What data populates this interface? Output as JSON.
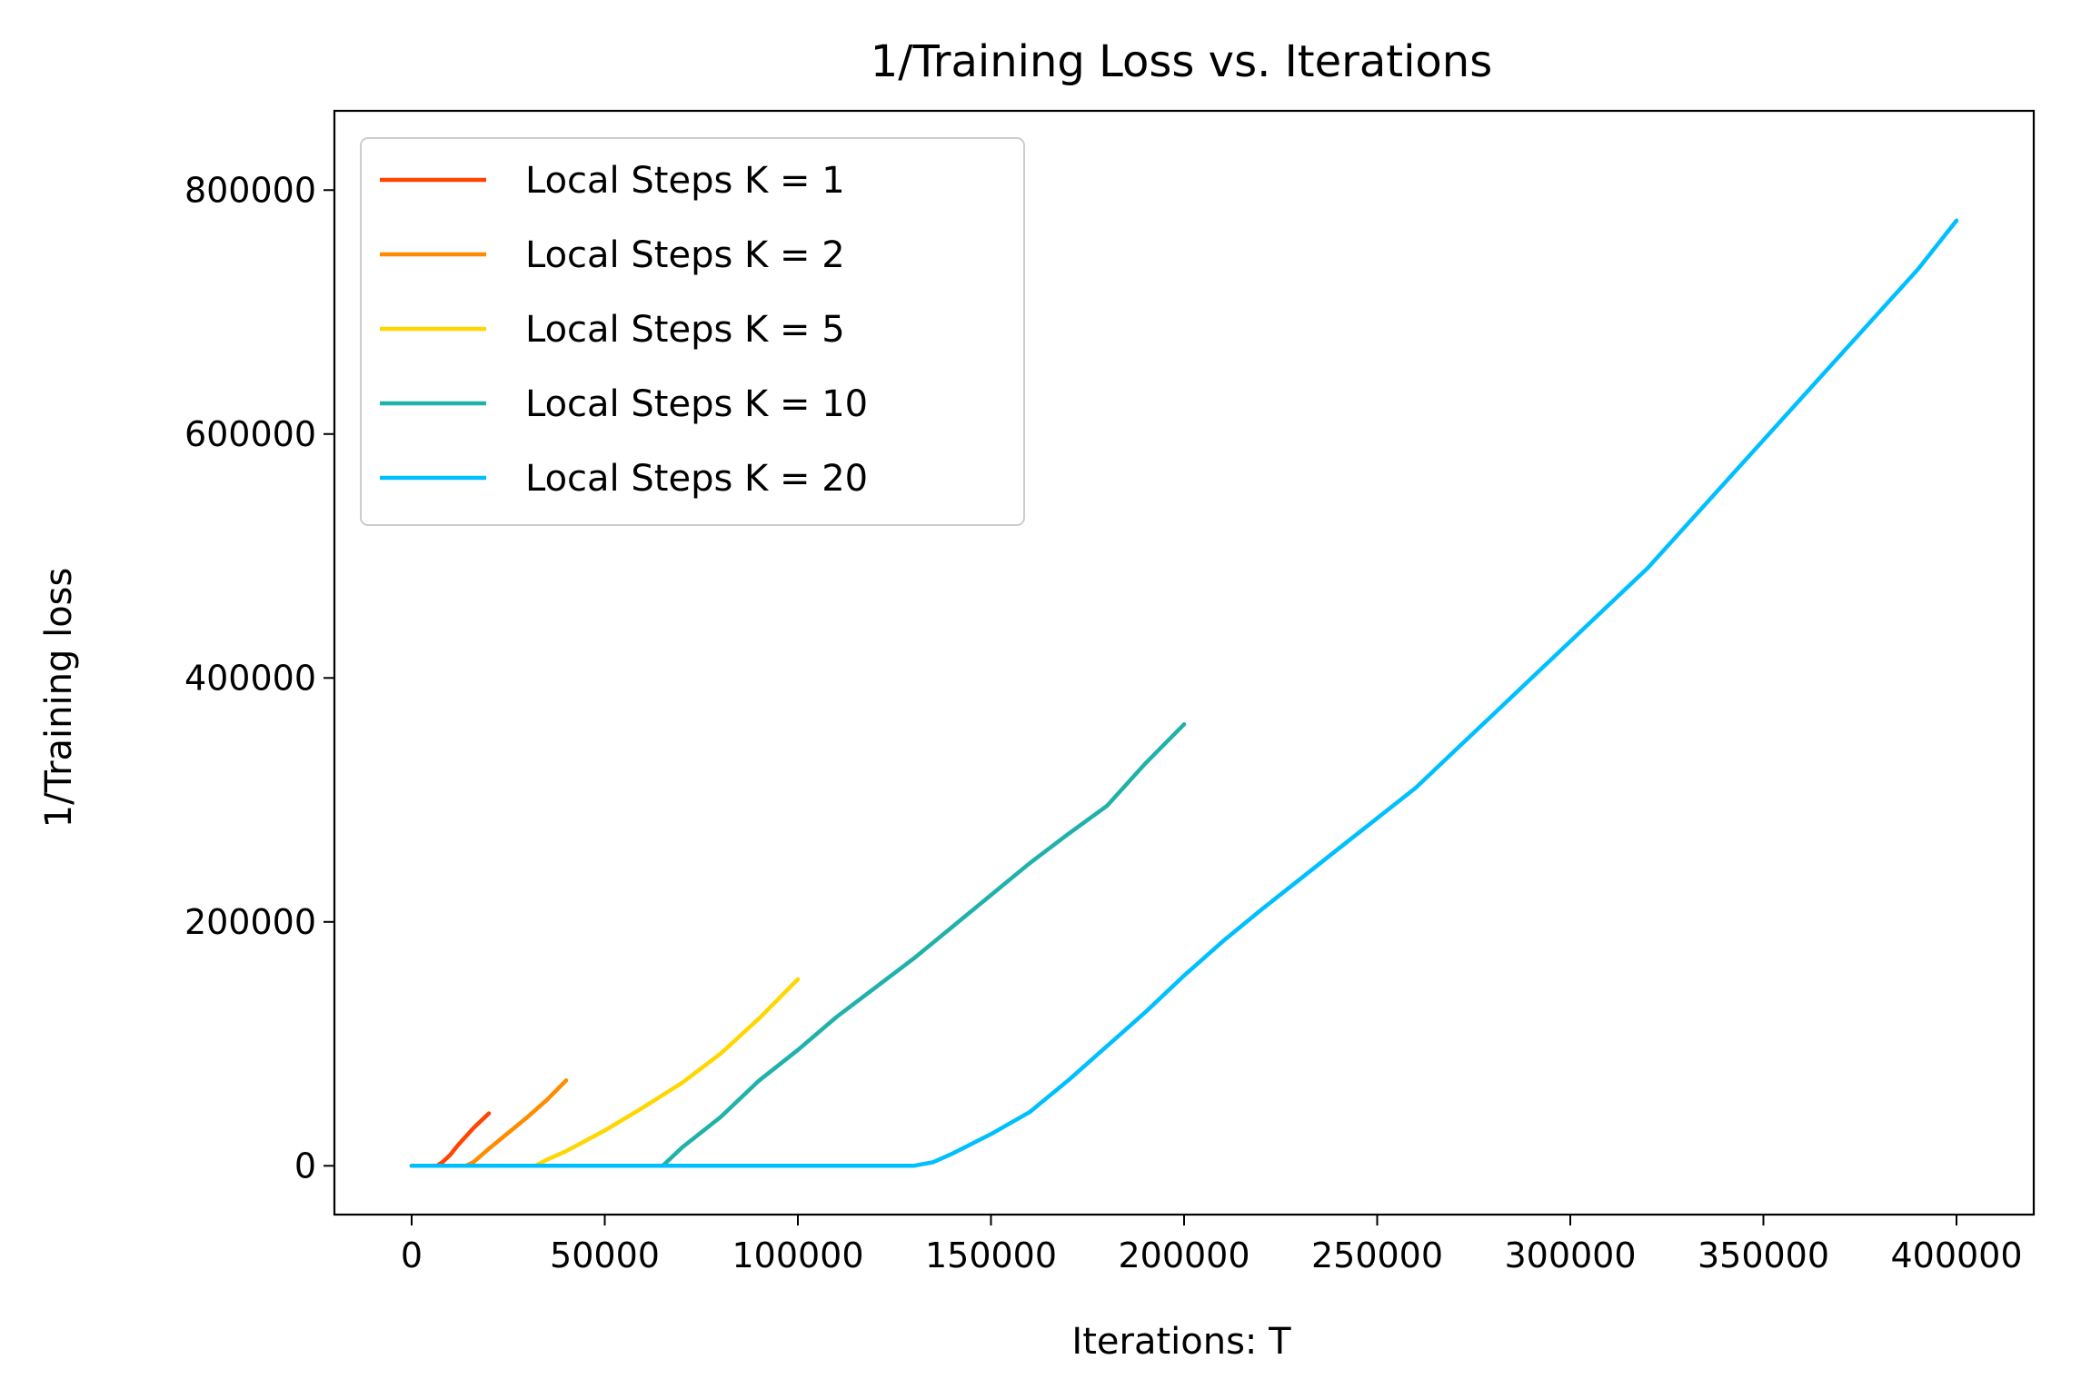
{
  "chart_data": {
    "type": "line",
    "title": "1/Training Loss vs. Iterations",
    "xlabel": "Iterations: T",
    "ylabel": "1/Training loss",
    "xlim": [
      -20000,
      420000
    ],
    "ylim": [
      -40000,
      865000
    ],
    "x_ticks": [
      0,
      50000,
      100000,
      150000,
      200000,
      250000,
      300000,
      350000,
      400000
    ],
    "x_tick_labels": [
      "0",
      "50000",
      "100000",
      "150000",
      "200000",
      "250000",
      "300000",
      "350000",
      "400000"
    ],
    "y_ticks": [
      0,
      200000,
      400000,
      600000,
      800000
    ],
    "y_tick_labels": [
      "0",
      "200000",
      "400000",
      "600000",
      "800000"
    ],
    "grid": false,
    "legend_position": "top-left",
    "series": [
      {
        "name": "Local Steps K = 1",
        "color": "#ff4500",
        "x": [
          0,
          6500,
          8000,
          10000,
          12000,
          14000,
          16000,
          18000,
          20000
        ],
        "y": [
          0,
          0,
          3000,
          9000,
          17000,
          24000,
          31000,
          37000,
          43000
        ]
      },
      {
        "name": "Local Steps K = 2",
        "color": "#ff8c00",
        "x": [
          0,
          14000,
          16000,
          20000,
          25000,
          30000,
          35000,
          40000
        ],
        "y": [
          0,
          0,
          3000,
          14000,
          27000,
          40000,
          54000,
          70000
        ]
      },
      {
        "name": "Local Steps K = 5",
        "color": "#ffd700",
        "x": [
          0,
          32000,
          35000,
          40000,
          50000,
          60000,
          70000,
          80000,
          90000,
          100000
        ],
        "y": [
          0,
          0,
          5000,
          12000,
          29000,
          48000,
          68000,
          92000,
          121000,
          153000
        ]
      },
      {
        "name": "Local Steps K = 10",
        "color": "#20b2aa",
        "x": [
          0,
          65000,
          70000,
          80000,
          90000,
          100000,
          110000,
          120000,
          130000,
          140000,
          150000,
          160000,
          170000,
          180000,
          190000,
          200000
        ],
        "y": [
          0,
          0,
          15000,
          40000,
          70000,
          95000,
          122000,
          146000,
          170000,
          196000,
          222000,
          248000,
          272000,
          295000,
          330000,
          362000
        ]
      },
      {
        "name": "Local Steps K = 20",
        "color": "#00bfff",
        "x": [
          0,
          130000,
          135000,
          140000,
          150000,
          160000,
          170000,
          180000,
          190000,
          200000,
          210000,
          220000,
          230000,
          240000,
          250000,
          260000,
          270000,
          280000,
          290000,
          300000,
          310000,
          320000,
          330000,
          340000,
          350000,
          360000,
          370000,
          380000,
          390000,
          400000
        ],
        "y": [
          0,
          0,
          3000,
          10000,
          26000,
          44000,
          70000,
          98000,
          126000,
          156000,
          184000,
          210000,
          235000,
          260000,
          285000,
          310000,
          340000,
          370000,
          400000,
          430000,
          460000,
          490000,
          525000,
          560000,
          595000,
          630000,
          665000,
          700000,
          735000,
          775000
        ]
      }
    ]
  }
}
